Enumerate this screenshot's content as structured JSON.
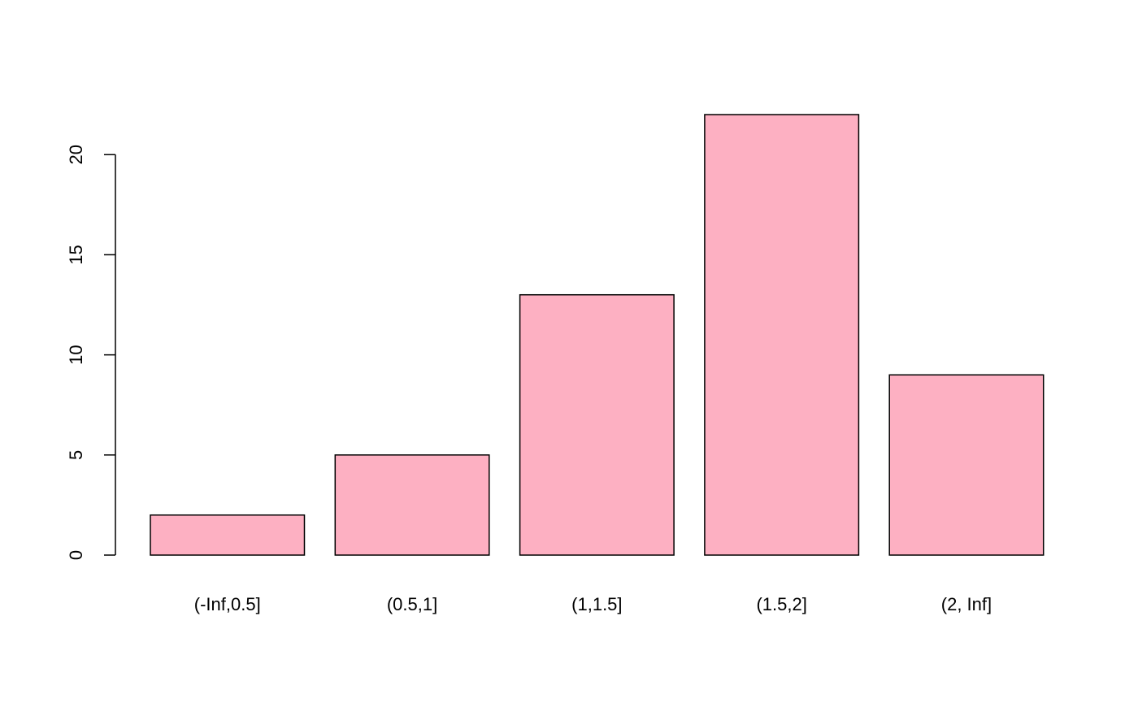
{
  "chart_data": {
    "type": "bar",
    "title": "",
    "xlabel": "",
    "ylabel": "",
    "categories": [
      "(-Inf,0.5]",
      "(0.5,1]",
      "(1,1.5]",
      "(1.5,2]",
      "(2, Inf]"
    ],
    "values": [
      2,
      5,
      13,
      22,
      9
    ],
    "ylim": [
      0,
      22
    ],
    "yticks": [
      0,
      5,
      10,
      15,
      20
    ],
    "ytick_labels": [
      "0",
      "5",
      "10",
      "15",
      "20"
    ],
    "grid": false,
    "legend": "none",
    "colors": {
      "bar_fill": "#FDB0C2",
      "bar_stroke": "#000000",
      "axis": "#000000"
    }
  }
}
